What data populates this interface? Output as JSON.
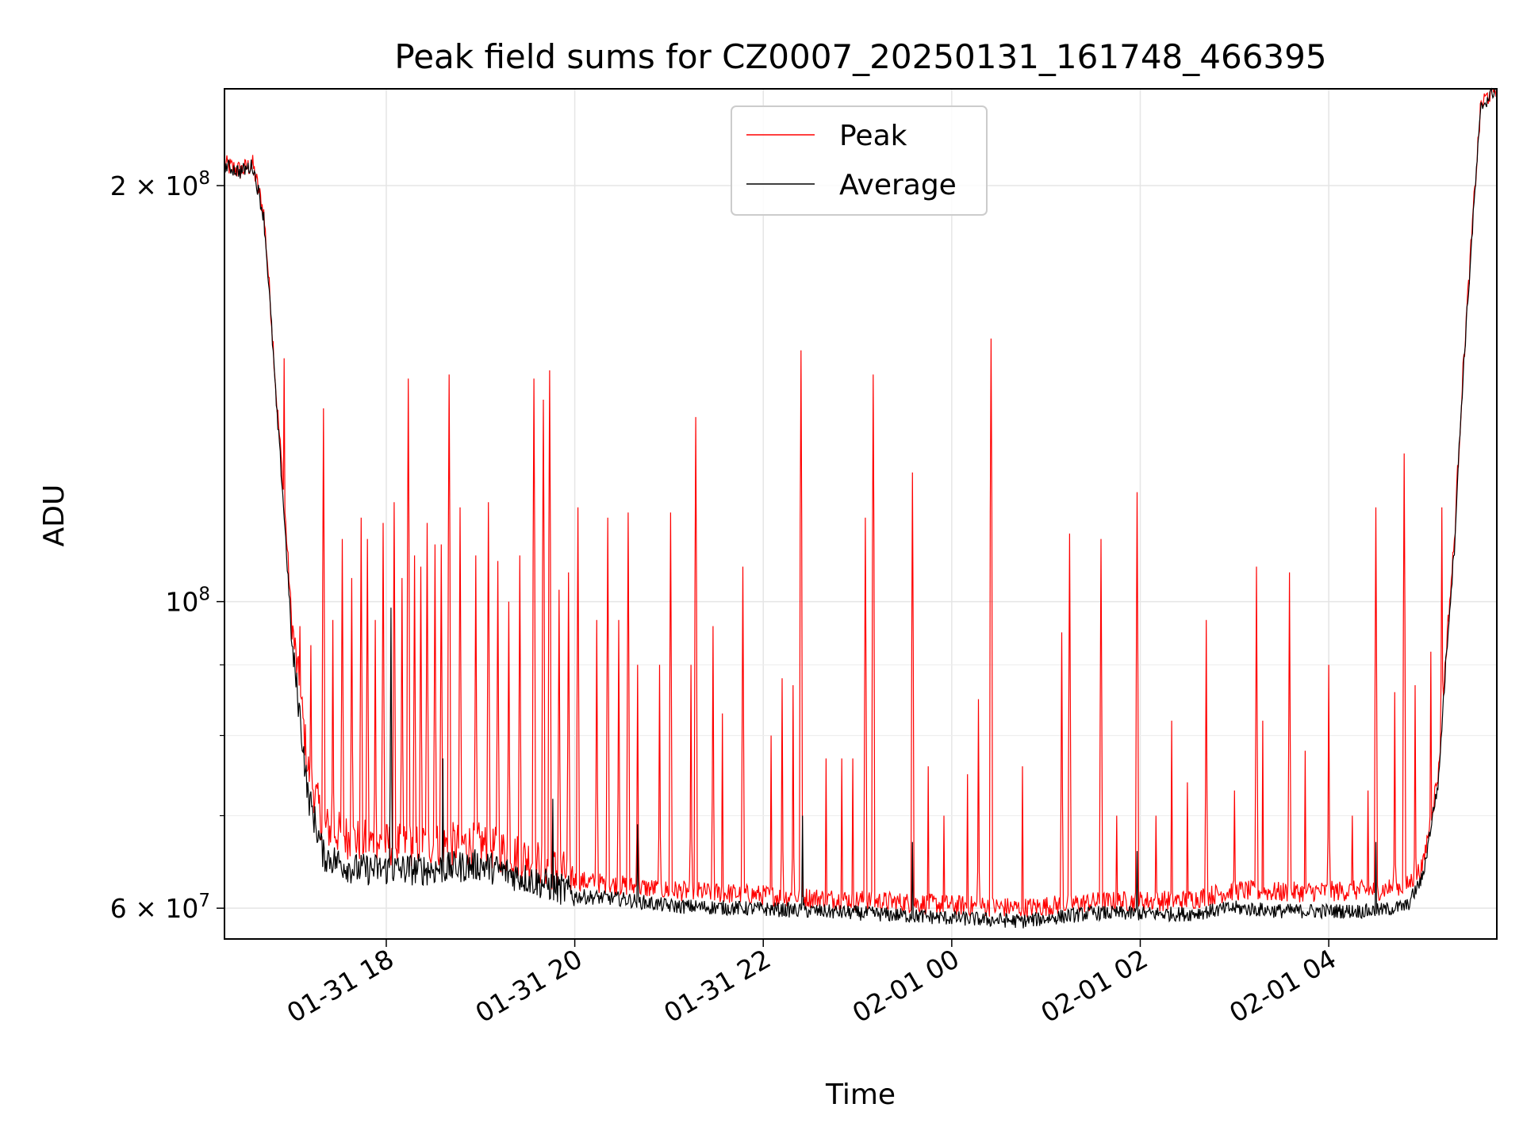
{
  "chart_data": {
    "type": "line",
    "title": "Peak field sums for CZ0007_20250131_161748_466395",
    "xlabel": "Time",
    "ylabel": "ADU",
    "yscale": "log",
    "xlim": [
      "2025-01-31 16:17",
      "2025-02-01 05:47"
    ],
    "ylim": [
      57000000,
      235000000
    ],
    "grid": true,
    "legend_position": "upper-center",
    "x_ticks": [
      {
        "t": "2025-01-31 18:00",
        "label": "01-31 18"
      },
      {
        "t": "2025-01-31 20:00",
        "label": "01-31 20"
      },
      {
        "t": "2025-01-31 22:00",
        "label": "01-31 22"
      },
      {
        "t": "2025-02-01 00:00",
        "label": "02-01 00"
      },
      {
        "t": "2025-02-01 02:00",
        "label": "02-01 02"
      },
      {
        "t": "2025-02-01 04:00",
        "label": "02-01 04"
      }
    ],
    "y_ticks": [
      {
        "v": 60000000,
        "label_base": "6 × 10",
        "label_exp": "7"
      },
      {
        "v": 100000000,
        "label_base": "10",
        "label_exp": "8"
      },
      {
        "v": 200000000,
        "label_base": "2 × 10",
        "label_exp": "8"
      }
    ],
    "y_minor_ticks": [
      70000000,
      80000000,
      90000000
    ],
    "series": [
      {
        "name": "Peak",
        "color": "#ff0000",
        "baseline": [
          [
            "2025-01-31 16:17",
            206000000
          ],
          [
            "2025-01-31 16:27",
            204000000
          ],
          [
            "2025-01-31 16:35",
            206000000
          ],
          [
            "2025-01-31 16:42",
            190000000
          ],
          [
            "2025-01-31 16:50",
            140000000
          ],
          [
            "2025-01-31 17:00",
            95000000
          ],
          [
            "2025-01-31 17:10",
            75000000
          ],
          [
            "2025-01-31 17:20",
            68000000
          ],
          [
            "2025-01-31 17:40",
            66500000
          ],
          [
            "2025-01-31 18:00",
            66000000
          ],
          [
            "2025-01-31 18:30",
            66000000
          ],
          [
            "2025-01-31 19:00",
            66000000
          ],
          [
            "2025-01-31 19:30",
            64500000
          ],
          [
            "2025-01-31 20:00",
            62500000
          ],
          [
            "2025-01-31 20:30",
            62000000
          ],
          [
            "2025-01-31 21:00",
            61500000
          ],
          [
            "2025-01-31 22:00",
            61000000
          ],
          [
            "2025-01-31 23:00",
            60500000
          ],
          [
            "2025-02-01 00:00",
            60000000
          ],
          [
            "2025-02-01 00:45",
            59700000
          ],
          [
            "2025-02-01 01:30",
            60300000
          ],
          [
            "2025-02-01 02:30",
            60500000
          ],
          [
            "2025-02-01 03:00",
            61500000
          ],
          [
            "2025-02-01 03:30",
            61300000
          ],
          [
            "2025-02-01 04:30",
            61500000
          ],
          [
            "2025-02-01 04:50",
            62000000
          ],
          [
            "2025-02-01 05:00",
            64000000
          ],
          [
            "2025-02-01 05:10",
            75000000
          ],
          [
            "2025-02-01 05:20",
            110000000
          ],
          [
            "2025-02-01 05:30",
            175000000
          ],
          [
            "2025-02-01 05:37",
            228000000
          ],
          [
            "2025-02-01 05:47",
            235000000
          ]
        ],
        "spikes": [
          [
            "2025-01-31 16:40",
            180000000
          ],
          [
            "2025-01-31 16:55",
            150000000
          ],
          [
            "2025-01-31 17:05",
            96000000
          ],
          [
            "2025-01-31 17:12",
            93000000
          ],
          [
            "2025-01-31 17:20",
            138000000
          ],
          [
            "2025-01-31 17:26",
            97000000
          ],
          [
            "2025-01-31 17:32",
            111000000
          ],
          [
            "2025-01-31 17:38",
            104000000
          ],
          [
            "2025-01-31 17:44",
            115000000
          ],
          [
            "2025-01-31 17:48",
            111000000
          ],
          [
            "2025-01-31 17:53",
            97000000
          ],
          [
            "2025-01-31 17:58",
            114000000
          ],
          [
            "2025-01-31 18:05",
            118000000
          ],
          [
            "2025-01-31 18:10",
            104000000
          ],
          [
            "2025-01-31 18:14",
            145000000
          ],
          [
            "2025-01-31 18:18",
            108000000
          ],
          [
            "2025-01-31 18:22",
            106000000
          ],
          [
            "2025-01-31 18:26",
            114000000
          ],
          [
            "2025-01-31 18:31",
            110000000
          ],
          [
            "2025-01-31 18:35",
            110000000
          ],
          [
            "2025-01-31 18:40",
            146000000
          ],
          [
            "2025-01-31 18:47",
            117000000
          ],
          [
            "2025-01-31 18:57",
            108000000
          ],
          [
            "2025-01-31 19:05",
            118000000
          ],
          [
            "2025-01-31 19:11",
            107000000
          ],
          [
            "2025-01-31 19:18",
            100000000
          ],
          [
            "2025-01-31 19:25",
            108000000
          ],
          [
            "2025-01-31 19:34",
            145000000
          ],
          [
            "2025-01-31 19:40",
            140000000
          ],
          [
            "2025-01-31 19:44",
            147000000
          ],
          [
            "2025-01-31 19:50",
            102000000
          ],
          [
            "2025-01-31 19:56",
            105000000
          ],
          [
            "2025-01-31 20:02",
            117000000
          ],
          [
            "2025-01-31 20:14",
            97000000
          ],
          [
            "2025-01-31 20:21",
            115000000
          ],
          [
            "2025-01-31 20:28",
            97000000
          ],
          [
            "2025-01-31 20:34",
            116000000
          ],
          [
            "2025-01-31 20:40",
            90000000
          ],
          [
            "2025-01-31 20:54",
            90000000
          ],
          [
            "2025-01-31 21:01",
            116000000
          ],
          [
            "2025-01-31 21:14",
            90000000
          ],
          [
            "2025-01-31 21:17",
            136000000
          ],
          [
            "2025-01-31 21:28",
            96000000
          ],
          [
            "2025-01-31 21:34",
            83000000
          ],
          [
            "2025-01-31 21:47",
            106000000
          ],
          [
            "2025-01-31 22:05",
            80000000
          ],
          [
            "2025-01-31 22:12",
            88000000
          ],
          [
            "2025-01-31 22:19",
            87000000
          ],
          [
            "2025-01-31 22:24",
            152000000
          ],
          [
            "2025-01-31 22:40",
            77000000
          ],
          [
            "2025-01-31 22:50",
            77000000
          ],
          [
            "2025-01-31 22:57",
            77000000
          ],
          [
            "2025-01-31 23:05",
            115000000
          ],
          [
            "2025-01-31 23:10",
            146000000
          ],
          [
            "2025-01-31 23:35",
            124000000
          ],
          [
            "2025-01-31 23:45",
            76000000
          ],
          [
            "2025-01-31 23:55",
            70000000
          ],
          [
            "2025-02-01 00:10",
            75000000
          ],
          [
            "2025-02-01 00:17",
            85000000
          ],
          [
            "2025-02-01 00:25",
            155000000
          ],
          [
            "2025-02-01 00:45",
            76000000
          ],
          [
            "2025-02-01 01:10",
            95000000
          ],
          [
            "2025-02-01 01:15",
            112000000
          ],
          [
            "2025-02-01 01:35",
            111000000
          ],
          [
            "2025-02-01 01:45",
            70000000
          ],
          [
            "2025-02-01 01:58",
            120000000
          ],
          [
            "2025-02-01 02:10",
            70000000
          ],
          [
            "2025-02-01 02:20",
            82000000
          ],
          [
            "2025-02-01 02:30",
            74000000
          ],
          [
            "2025-02-01 02:42",
            97000000
          ],
          [
            "2025-02-01 03:00",
            73000000
          ],
          [
            "2025-02-01 03:14",
            106000000
          ],
          [
            "2025-02-01 03:18",
            82000000
          ],
          [
            "2025-02-01 03:35",
            105000000
          ],
          [
            "2025-02-01 03:45",
            78000000
          ],
          [
            "2025-02-01 04:00",
            90000000
          ],
          [
            "2025-02-01 04:15",
            70000000
          ],
          [
            "2025-02-01 04:25",
            73000000
          ],
          [
            "2025-02-01 04:30",
            117000000
          ],
          [
            "2025-02-01 04:42",
            86000000
          ],
          [
            "2025-02-01 04:48",
            128000000
          ],
          [
            "2025-02-01 04:55",
            87000000
          ],
          [
            "2025-02-01 05:05",
            92000000
          ],
          [
            "2025-02-01 05:12",
            117000000
          ]
        ]
      },
      {
        "name": "Average",
        "color": "#000000",
        "baseline": [
          [
            "2025-01-31 16:17",
            206000000
          ],
          [
            "2025-01-31 16:27",
            204000000
          ],
          [
            "2025-01-31 16:35",
            206000000
          ],
          [
            "2025-01-31 16:42",
            189000000
          ],
          [
            "2025-01-31 16:50",
            138000000
          ],
          [
            "2025-01-31 17:00",
            92000000
          ],
          [
            "2025-01-31 17:10",
            72000000
          ],
          [
            "2025-01-31 17:20",
            65000000
          ],
          [
            "2025-01-31 17:40",
            63500000
          ],
          [
            "2025-01-31 18:00",
            63500000
          ],
          [
            "2025-01-31 18:30",
            63500000
          ],
          [
            "2025-01-31 19:00",
            64000000
          ],
          [
            "2025-01-31 19:30",
            62500000
          ],
          [
            "2025-01-31 20:00",
            61000000
          ],
          [
            "2025-01-31 20:30",
            60700000
          ],
          [
            "2025-01-31 21:00",
            60000000
          ],
          [
            "2025-01-31 22:00",
            59700000
          ],
          [
            "2025-01-31 23:00",
            59300000
          ],
          [
            "2025-02-01 00:00",
            58800000
          ],
          [
            "2025-02-01 00:45",
            58500000
          ],
          [
            "2025-02-01 01:30",
            59300000
          ],
          [
            "2025-02-01 02:30",
            59200000
          ],
          [
            "2025-02-01 03:00",
            59800000
          ],
          [
            "2025-02-01 03:30",
            59500000
          ],
          [
            "2025-02-01 04:30",
            59500000
          ],
          [
            "2025-02-01 04:50",
            60000000
          ],
          [
            "2025-02-01 05:00",
            63000000
          ],
          [
            "2025-02-01 05:10",
            74000000
          ],
          [
            "2025-02-01 05:20",
            109000000
          ],
          [
            "2025-02-01 05:30",
            174000000
          ],
          [
            "2025-02-01 05:37",
            227000000
          ],
          [
            "2025-02-01 05:47",
            235000000
          ]
        ],
        "spikes": [
          [
            "2025-01-31 18:03",
            99000000
          ],
          [
            "2025-01-31 18:36",
            77000000
          ],
          [
            "2025-01-31 19:46",
            72000000
          ],
          [
            "2025-01-31 20:40",
            69000000
          ],
          [
            "2025-01-31 22:25",
            70000000
          ],
          [
            "2025-01-31 23:35",
            67000000
          ],
          [
            "2025-02-01 01:58",
            66000000
          ],
          [
            "2025-02-01 04:30",
            67000000
          ]
        ]
      }
    ]
  }
}
